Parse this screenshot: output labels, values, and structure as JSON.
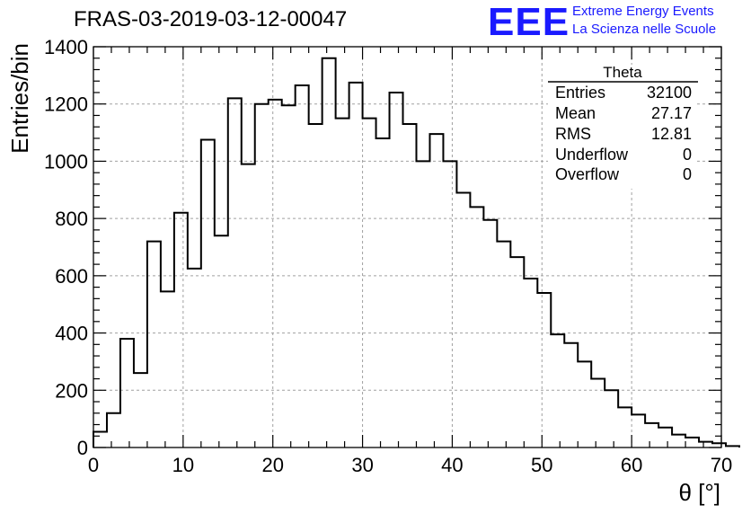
{
  "title": "FRAS-03-2019-03-12-00047",
  "logo": {
    "mark": "EEE",
    "line1": "Extreme Energy Events",
    "line2": "La Scienza nelle Scuole",
    "color": "#1a1aff"
  },
  "stats": {
    "title": "Theta",
    "rows": [
      {
        "key": "Entries",
        "value": "32100"
      },
      {
        "key": "Mean",
        "value": "27.17"
      },
      {
        "key": "RMS",
        "value": "12.81"
      },
      {
        "key": "Underflow",
        "value": "0"
      },
      {
        "key": "Overflow",
        "value": "0"
      }
    ]
  },
  "chart_data": {
    "type": "histogram",
    "title": "FRAS-03-2019-03-12-00047",
    "xlabel": "θ [°]",
    "ylabel": "Entries/bin",
    "xlim": [
      0,
      70
    ],
    "ylim": [
      0,
      1400
    ],
    "bin_width": 1.5,
    "bin_edges_start": 0,
    "values": [
      55,
      120,
      380,
      260,
      720,
      545,
      820,
      625,
      1075,
      740,
      1220,
      990,
      1200,
      1215,
      1195,
      1265,
      1130,
      1360,
      1150,
      1275,
      1150,
      1080,
      1240,
      1130,
      1000,
      1095,
      1000,
      890,
      840,
      795,
      720,
      665,
      590,
      540,
      395,
      365,
      300,
      240,
      200,
      140,
      115,
      85,
      70,
      45,
      35,
      20,
      15,
      5
    ],
    "xticks": [
      "0",
      "10",
      "20",
      "30",
      "40",
      "50",
      "60",
      "70"
    ],
    "yticks": [
      "0",
      "200",
      "400",
      "600",
      "800",
      "1000",
      "1200",
      "1400"
    ],
    "grid": true,
    "line_color": "#000000",
    "grid_color": "#a0a0a0"
  }
}
